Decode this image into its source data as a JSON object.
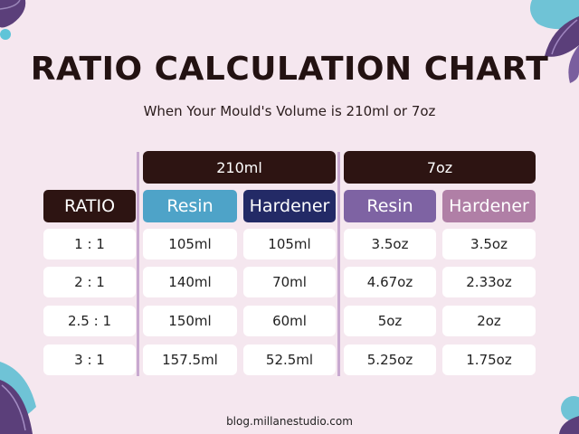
{
  "title": "RATIO CALCULATION CHART",
  "subtitle": "When Your Mould's Volume is 210ml or 7oz",
  "headers": {
    "ml": "210ml",
    "oz": "7oz"
  },
  "subheaders": {
    "ratio": "RATIO",
    "resin_ml": "Resin",
    "hardener_ml": "Hardener",
    "resin_oz": "Resin",
    "hardener_oz": "Hardener"
  },
  "rows": [
    {
      "ratio": "1 : 1",
      "resin_ml": "105ml",
      "hardener_ml": "105ml",
      "resin_oz": "3.5oz",
      "hardener_oz": "3.5oz"
    },
    {
      "ratio": "2 : 1",
      "resin_ml": "140ml",
      "hardener_ml": "70ml",
      "resin_oz": "4.67oz",
      "hardener_oz": "2.33oz"
    },
    {
      "ratio": "2.5 : 1",
      "resin_ml": "150ml",
      "hardener_ml": "60ml",
      "resin_oz": "5oz",
      "hardener_oz": "2oz"
    },
    {
      "ratio": "3 : 1",
      "resin_ml": "157.5ml",
      "hardener_ml": "52.5ml",
      "resin_oz": "5.25oz",
      "hardener_oz": "1.75oz"
    }
  ],
  "footer": "blog.millanestudio.com",
  "colors": {
    "background": "#f5e7ef",
    "header_dark": "#2d1412",
    "resin_ml": "#4ea3c8",
    "hardener_ml": "#232a66",
    "resin_oz": "#7e63a3",
    "hardener_oz": "#b07fa6"
  }
}
